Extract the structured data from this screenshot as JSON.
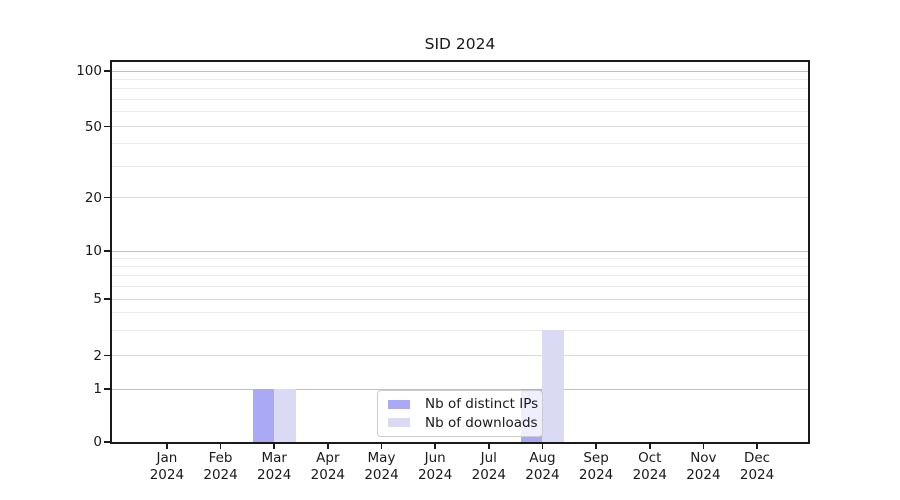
{
  "chart_data": {
    "type": "bar",
    "title": "SID 2024",
    "categories": [
      "Jan",
      "Feb",
      "Mar",
      "Apr",
      "May",
      "Jun",
      "Jul",
      "Aug",
      "Sep",
      "Oct",
      "Nov",
      "Dec"
    ],
    "x_year_label": "2024",
    "series": [
      {
        "name": "Nb of distinct IPs",
        "color": "#a9a9f5",
        "values": [
          0,
          0,
          1,
          0,
          0,
          0,
          0,
          1,
          0,
          0,
          0,
          0
        ]
      },
      {
        "name": "Nb of downloads",
        "color": "#dadaf5",
        "values": [
          0,
          0,
          1,
          0,
          0,
          0,
          0,
          3,
          0,
          0,
          0,
          0
        ]
      }
    ],
    "y_axis": {
      "scale": "log-like",
      "tick_values": [
        0,
        1,
        2,
        5,
        10,
        20,
        50,
        100
      ],
      "tick_labels": [
        "0",
        "1",
        "2",
        "5",
        "10",
        "20",
        "50",
        "100"
      ],
      "minor_gridline_values": [
        3,
        4,
        6,
        7,
        8,
        9,
        30,
        40,
        60,
        70,
        80,
        90
      ],
      "range_top": 110
    },
    "legend": {
      "position": "inside-lower-center",
      "entries": [
        "Nb of distinct IPs",
        "Nb of downloads"
      ]
    },
    "colors": {
      "axis": "#1a1a1a",
      "grid_minor": "#ebebeb",
      "grid_major": "#dadada",
      "grid_decade": "#c2c2c2",
      "background": "#ffffff"
    }
  }
}
